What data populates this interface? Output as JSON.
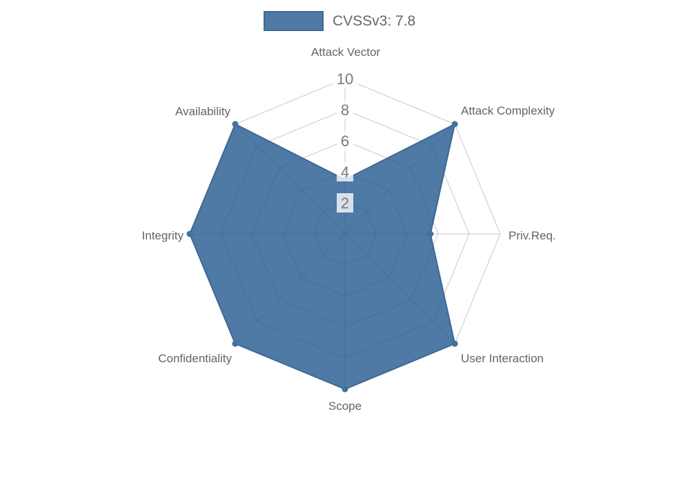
{
  "legend": {
    "label": "CVSSv3: 7.8"
  },
  "colors": {
    "fill": "rgba(28,84,140,0.78)",
    "stroke": "#3e6895",
    "marker": "#44709e",
    "grid": "#c9c9c9",
    "tick_backdrop": "rgba(255,255,255,0.78)",
    "tick_text": "#7a7a7a",
    "axis_text": "#646464",
    "legend_text": "#666666"
  },
  "chart_data": {
    "type": "radar",
    "categories": [
      "Attack Vector",
      "Attack Complexity",
      "Priv.Req.",
      "User Interaction",
      "Scope",
      "Confidentiality",
      "Integrity",
      "Availability"
    ],
    "series": [
      {
        "name": "CVSSv3: 7.8",
        "values": [
          3.5,
          10,
          5.5,
          10,
          10,
          10,
          10,
          10
        ]
      }
    ],
    "ticks": [
      2,
      4,
      6,
      8,
      10
    ],
    "rmin": 0,
    "rmax": 10,
    "grid": true,
    "grid_shape": "polygon",
    "legend_position": "top",
    "start_axis": "top",
    "direction": "clockwise"
  }
}
